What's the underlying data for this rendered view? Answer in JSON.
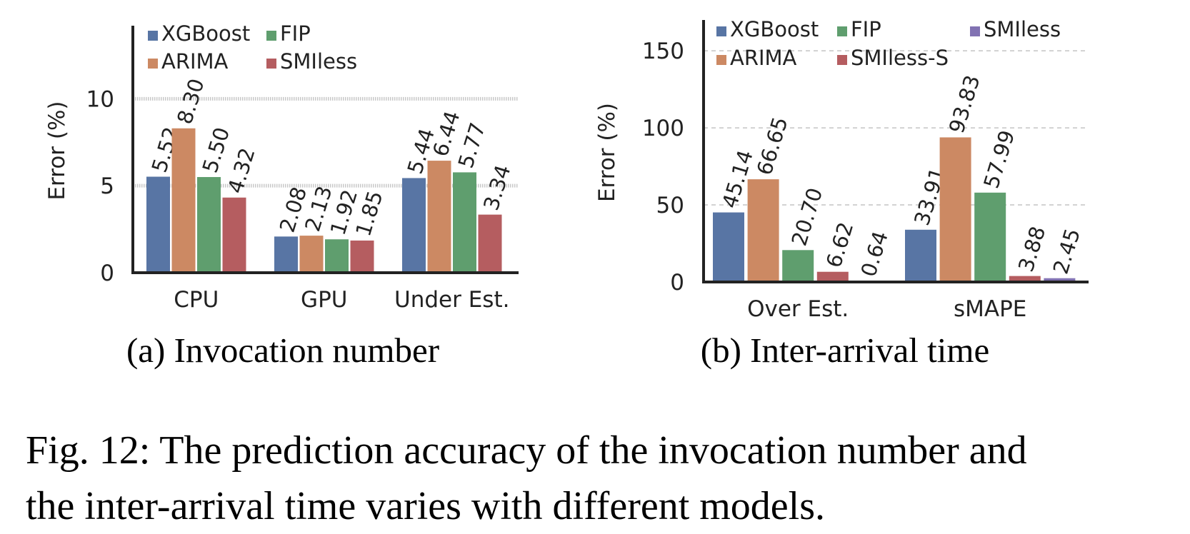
{
  "figure_caption": {
    "line1": "Fig. 12: The prediction accuracy of the invocation number and",
    "line2": "the inter-arrival time varies with different models."
  },
  "colors": {
    "XGBoost": "#5875a4",
    "ARIMA": "#cc8963",
    "FIP": "#5f9e6e",
    "SMIless": "#b55d60",
    "SMIless-S": "#b55d60",
    "SMIless-b": "#8172b2"
  },
  "chart_data": [
    {
      "type": "bar",
      "subtitle": "(a) Invocation number",
      "ylabel": "Error (%)",
      "xlabel": "",
      "categories": [
        "CPU",
        "GPU",
        "Under Est."
      ],
      "series": [
        {
          "name": "XGBoost",
          "values": [
            5.52,
            2.08,
            5.44
          ],
          "labels": [
            "5.52",
            "2.08",
            "5.44"
          ]
        },
        {
          "name": "ARIMA",
          "values": [
            8.3,
            2.13,
            6.44
          ],
          "labels": [
            "8.30",
            "2.13",
            "6.44"
          ]
        },
        {
          "name": "FIP",
          "values": [
            5.5,
            1.92,
            5.77
          ],
          "labels": [
            "5.50",
            "1.92",
            "5.77"
          ]
        },
        {
          "name": "SMIless",
          "values": [
            4.32,
            1.85,
            3.34
          ],
          "labels": [
            "4.32",
            "1.85",
            "3.34"
          ]
        }
      ],
      "legend_order": [
        "XGBoost",
        "FIP",
        "ARIMA",
        "SMIless"
      ],
      "yticks": [
        0,
        5,
        10
      ],
      "ylim": [
        0,
        14.2
      ],
      "grid": "horizontal dotted",
      "legend_position": "top-left"
    },
    {
      "type": "bar",
      "subtitle": "(b) Inter-arrival time",
      "ylabel": "Error (%)",
      "xlabel": "",
      "categories": [
        "Over Est.",
        "sMAPE"
      ],
      "series": [
        {
          "name": "XGBoost",
          "values": [
            45.14,
            33.91
          ],
          "labels": [
            "45.14",
            "33.91"
          ]
        },
        {
          "name": "ARIMA",
          "values": [
            66.65,
            93.83
          ],
          "labels": [
            "66.65",
            "93.83"
          ]
        },
        {
          "name": "FIP",
          "values": [
            20.7,
            57.99
          ],
          "labels": [
            "20.70",
            "57.99"
          ]
        },
        {
          "name": "SMIless-S",
          "values": [
            6.62,
            3.88
          ],
          "labels": [
            "6.62",
            "3.88"
          ]
        },
        {
          "name": "SMIless",
          "values": [
            0.64,
            2.45
          ],
          "labels": [
            "0.64",
            "2.45"
          ]
        }
      ],
      "legend_order": [
        "XGBoost",
        "FIP",
        "SMIless",
        "ARIMA",
        "SMIless-S"
      ],
      "yticks": [
        0,
        50,
        100,
        150
      ],
      "ylim": [
        0,
        170
      ],
      "grid": "horizontal dashed",
      "legend_position": "top"
    }
  ]
}
